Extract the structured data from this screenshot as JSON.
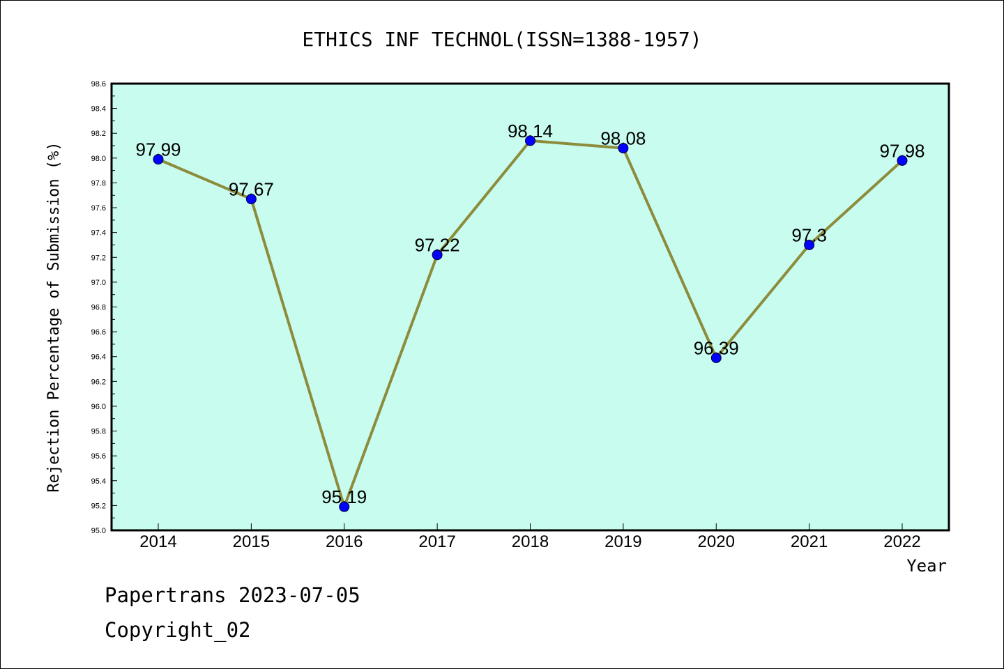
{
  "chart_data": {
    "type": "line",
    "title": "ETHICS INF TECHNOL(ISSN=1388-1957)",
    "xlabel": "Year",
    "ylabel": "Rejection Percentage of Submission (%)",
    "categories": [
      "2014",
      "2015",
      "2016",
      "2017",
      "2018",
      "2019",
      "2020",
      "2021",
      "2022"
    ],
    "values": [
      97.99,
      97.67,
      95.19,
      97.22,
      98.14,
      98.08,
      96.39,
      97.3,
      97.98
    ],
    "data_labels": [
      "97.99",
      "97.67",
      "95.19",
      "97.22",
      "98.14",
      "98.08",
      "96.39",
      "97.3",
      "97.98"
    ],
    "ylim": [
      95.0,
      98.6
    ],
    "yticks": [
      "95.0",
      "95.2",
      "95.4",
      "95.6",
      "95.8",
      "96.0",
      "96.2",
      "96.4",
      "96.6",
      "96.8",
      "97.0",
      "97.2",
      "97.4",
      "97.6",
      "97.8",
      "98.0",
      "98.2",
      "98.4",
      "98.6"
    ],
    "grid": false,
    "colors": {
      "plot_background": "#c8fcee",
      "line": "#8c8c3c",
      "marker": "#0000ff"
    }
  },
  "footer": {
    "line1": "Papertrans 2023-07-05",
    "line2": "Copyright_02"
  }
}
